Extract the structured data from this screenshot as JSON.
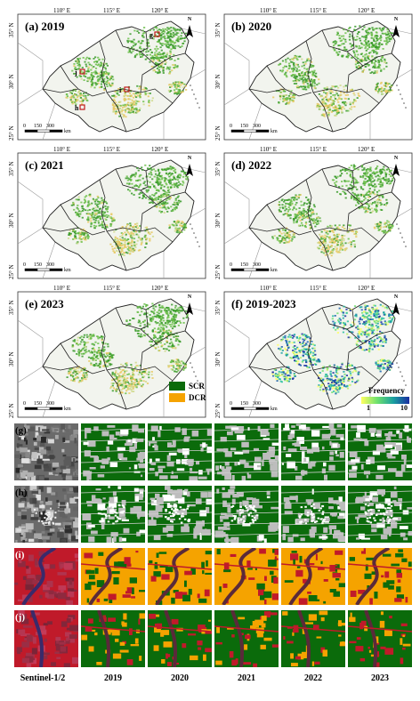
{
  "panels": [
    {
      "id": "a",
      "label": "(a) 2019",
      "kind": "class"
    },
    {
      "id": "b",
      "label": "(b) 2020",
      "kind": "class"
    },
    {
      "id": "c",
      "label": "(c) 2021",
      "kind": "class"
    },
    {
      "id": "d",
      "label": "(d) 2022",
      "kind": "class"
    },
    {
      "id": "e",
      "label": "(e) 2023",
      "kind": "class"
    },
    {
      "id": "f",
      "label": "(f) 2019-2023",
      "kind": "frequency"
    }
  ],
  "longitude_labels": [
    "110° E",
    "115° E",
    "120° E"
  ],
  "latitude_labels": [
    "35° N",
    "30° N",
    "25° N"
  ],
  "scale_bar": {
    "ticks": [
      "0",
      "150",
      "300"
    ],
    "unit": "km"
  },
  "north_arrow": "N",
  "sample_markers": [
    "g",
    "h",
    "i",
    "j"
  ],
  "class_legend": [
    {
      "name": "SCR",
      "color": "#0b6b0b"
    },
    {
      "name": "DCR",
      "color": "#f5a300"
    }
  ],
  "frequency_legend": {
    "title": "Frequency",
    "min": "1",
    "max": "10",
    "colors": [
      "#ffff60",
      "#6ee06e",
      "#1aa0a0",
      "#1a2ea0"
    ]
  },
  "detail_rows": [
    "(g)",
    "(h)",
    "(i)",
    "(j)"
  ],
  "column_labels": [
    "Sentinel-1/2",
    "2019",
    "2020",
    "2021",
    "2022",
    "2023"
  ],
  "colors": {
    "scr": "#0b6b0b",
    "dcr": "#f5a300",
    "water": "#c01a2a",
    "sar_light": "#bdbdbd",
    "sar_dark": "#3a3a3a"
  }
}
